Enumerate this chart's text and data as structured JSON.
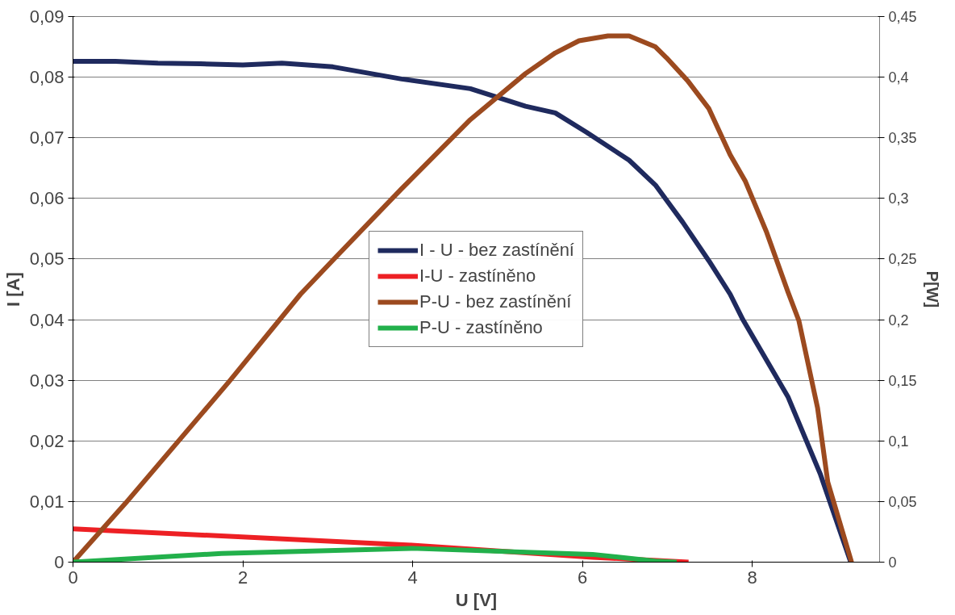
{
  "chart_data": {
    "type": "line",
    "xlabel": "U [V]",
    "ylabel": "I [A]",
    "y2label": "P[W]",
    "xlim": [
      0,
      9.5
    ],
    "xticks": [
      0,
      2,
      4,
      6,
      8
    ],
    "ylim": [
      0,
      0.09
    ],
    "yticks": [
      {
        "value": 0,
        "label": "0"
      },
      {
        "value": 0.01,
        "label": "0,01"
      },
      {
        "value": 0.02,
        "label": "0,02"
      },
      {
        "value": 0.03,
        "label": "0,03"
      },
      {
        "value": 0.04,
        "label": "0,04"
      },
      {
        "value": 0.05,
        "label": "0,05"
      },
      {
        "value": 0.06,
        "label": "0,06"
      },
      {
        "value": 0.07,
        "label": "0,07"
      },
      {
        "value": 0.08,
        "label": "0,08"
      },
      {
        "value": 0.09,
        "label": "0,09"
      }
    ],
    "y2lim": [
      0,
      0.45
    ],
    "y2ticks": [
      {
        "value": 0,
        "label": "0"
      },
      {
        "value": 0.05,
        "label": "0,05"
      },
      {
        "value": 0.1,
        "label": "0,1"
      },
      {
        "value": 0.15,
        "label": "0,15"
      },
      {
        "value": 0.2,
        "label": "0,2"
      },
      {
        "value": 0.25,
        "label": "0,25"
      },
      {
        "value": 0.3,
        "label": "0,3"
      },
      {
        "value": 0.35,
        "label": "0,35"
      },
      {
        "value": 0.4,
        "label": "0,4"
      },
      {
        "value": 0.45,
        "label": "0,45"
      }
    ],
    "grid": "y",
    "legend": "center",
    "marker": "none",
    "line_style": "solid",
    "series": [
      {
        "name": "I - U - bez zastínění",
        "color": "#1f2a5e",
        "x": [
          0,
          0.5,
          1,
          1.5,
          2,
          2.46,
          3.06,
          3.87,
          4.68,
          5.33,
          5.68,
          6.05,
          6.55,
          6.86,
          7.18,
          7.49,
          7.74,
          7.89,
          8.42,
          8.8,
          9.16
        ],
        "values": [
          0.0826,
          0.0826,
          0.0823,
          0.0822,
          0.082,
          0.0823,
          0.0817,
          0.0797,
          0.0781,
          0.0752,
          0.0741,
          0.0709,
          0.0663,
          0.0622,
          0.0561,
          0.0497,
          0.0442,
          0.04,
          0.0273,
          0.0146,
          0
        ]
      },
      {
        "name": "I-U - zastíněno",
        "color": "#ed2024",
        "x": [
          0,
          3.99,
          6.12,
          7.25
        ],
        "values": [
          0.0055,
          0.0028,
          0.0008,
          0
        ]
      },
      {
        "name": "P-U - bez zastínění",
        "color": "#9c4a1f",
        "axis": "y2",
        "x": [
          0,
          0.62,
          1.84,
          2.68,
          3.06,
          3.87,
          4.68,
          5.33,
          5.68,
          5.96,
          6.3,
          6.55,
          6.86,
          6.99,
          7.24,
          7.49,
          7.74,
          7.92,
          8.17,
          8.42,
          8.55,
          8.77,
          8.89,
          9.17
        ],
        "values": [
          0,
          0.0487,
          0.149,
          0.221,
          0.249,
          0.308,
          0.365,
          0.403,
          0.42,
          0.43,
          0.434,
          0.434,
          0.425,
          0.416,
          0.397,
          0.374,
          0.336,
          0.314,
          0.272,
          0.223,
          0.199,
          0.127,
          0.066,
          0
        ]
      },
      {
        "name": "P-U - zastíněno",
        "color": "#22b04b",
        "axis": "y2",
        "x": [
          0,
          1.75,
          3.99,
          6.12,
          6.86,
          7.11
        ],
        "values": [
          0,
          0.0072,
          0.0114,
          0.0064,
          0.0008,
          0
        ]
      }
    ]
  }
}
